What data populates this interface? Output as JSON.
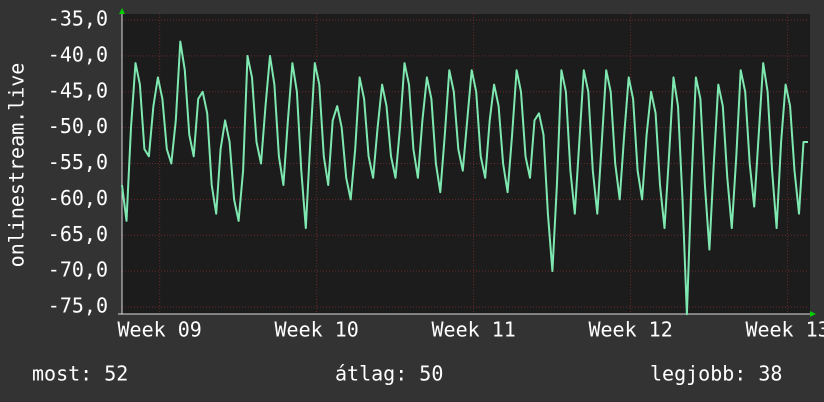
{
  "chart_data": {
    "type": "line",
    "y_label": "onlinestream.live",
    "ylim": [
      -75,
      -35
    ],
    "yticks": [
      {
        "value": -35,
        "label": "-35,0"
      },
      {
        "value": -40,
        "label": "-40,0"
      },
      {
        "value": -45,
        "label": "-45,0"
      },
      {
        "value": -50,
        "label": "-50,0"
      },
      {
        "value": -55,
        "label": "-55,0"
      },
      {
        "value": -60,
        "label": "-60,0"
      },
      {
        "value": -65,
        "label": "-65,0"
      },
      {
        "value": -70,
        "label": "-70,0"
      },
      {
        "value": -75,
        "label": "-75,0"
      }
    ],
    "xlim": [
      8.76,
      13.13
    ],
    "xticks": [
      {
        "value": 9,
        "label": "Week 09"
      },
      {
        "value": 10,
        "label": "Week 10"
      },
      {
        "value": 11,
        "label": "Week 11"
      },
      {
        "value": 12,
        "label": "Week 12"
      },
      {
        "value": 13,
        "label": "Week 13"
      }
    ],
    "grid": true,
    "series": [
      {
        "color": "#7ee8b0",
        "values": [
          -58,
          -63,
          -50,
          -41,
          -44,
          -53,
          -54,
          -47,
          -43,
          -46,
          -53,
          -55,
          -49,
          -38,
          -42,
          -51,
          -54,
          -46,
          -45,
          -48,
          -58,
          -62,
          -53,
          -49,
          -52,
          -60,
          -63,
          -56,
          -40,
          -43,
          -52,
          -55,
          -47,
          -40,
          -44,
          -54,
          -58,
          -49,
          -41,
          -45,
          -56,
          -64,
          -52,
          -41,
          -44,
          -54,
          -58,
          -49,
          -47,
          -50,
          -57,
          -60,
          -53,
          -43,
          -46,
          -54,
          -57,
          -50,
          -44,
          -47,
          -54,
          -57,
          -50,
          -41,
          -44,
          -53,
          -57,
          -49,
          -43,
          -46,
          -55,
          -59,
          -51,
          -42,
          -45,
          -53,
          -56,
          -49,
          -42,
          -45,
          -54,
          -57,
          -49,
          -44,
          -47,
          -55,
          -59,
          -51,
          -42,
          -45,
          -54,
          -57,
          -49,
          -48,
          -51,
          -62,
          -70,
          -58,
          -42,
          -45,
          -56,
          -62,
          -52,
          -42,
          -45,
          -56,
          -62,
          -52,
          -42,
          -45,
          -55,
          -60,
          -51,
          -43,
          -46,
          -56,
          -60,
          -51,
          -45,
          -48,
          -58,
          -64,
          -54,
          -43,
          -47,
          -60,
          -76,
          -58,
          -43,
          -46,
          -58,
          -67,
          -55,
          -44,
          -47,
          -57,
          -64,
          -54,
          -42,
          -45,
          -55,
          -61,
          -51,
          -41,
          -45,
          -56,
          -64,
          -52,
          -44,
          -47,
          -56,
          -62,
          -52,
          -52
        ]
      }
    ],
    "stats": [
      "most: 52",
      "átlag: 50",
      "legjobb: 38"
    ]
  }
}
